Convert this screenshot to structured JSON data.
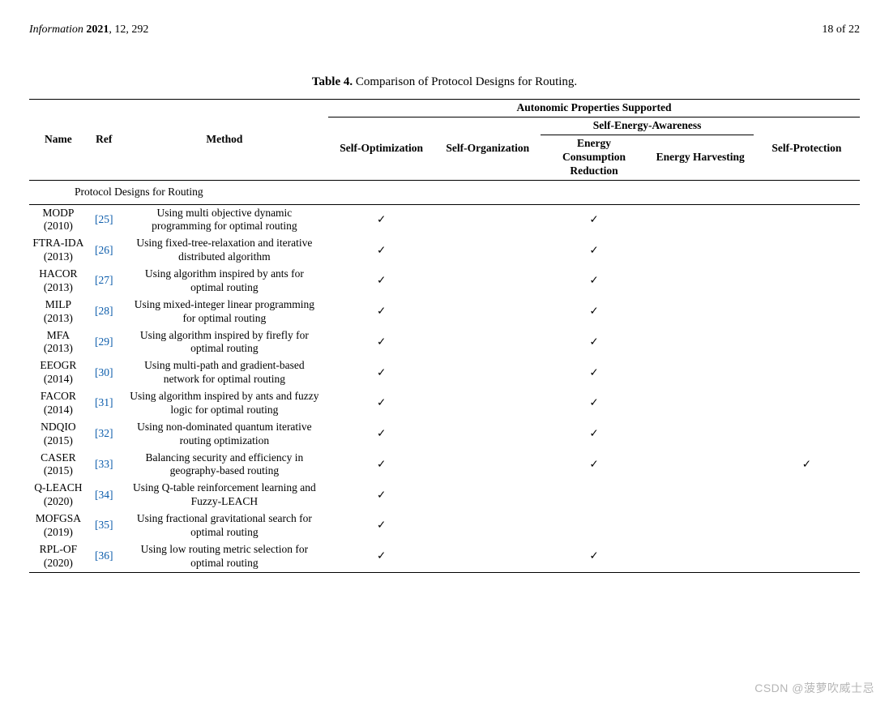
{
  "header": {
    "journal_italic": "Information",
    "year_bold": "2021",
    "vol_issue": ", 12, 292",
    "page": "18 of 22"
  },
  "caption": {
    "label": "Table 4.",
    "text": "Comparison of Protocol Designs for Routing."
  },
  "columns": {
    "name": "Name",
    "ref": "Ref",
    "method": "Method",
    "autonomic": "Autonomic Properties Supported",
    "self_opt": "Self-Optimization",
    "self_org": "Self-Organization",
    "self_energy": "Self-Energy-Awareness",
    "energy_cons": "Energy Consumption Reduction",
    "energy_harv": "Energy Harvesting",
    "self_prot": "Self-Protection"
  },
  "section_title": "Protocol Designs for Routing",
  "check": "✓",
  "rows": [
    {
      "name": "MODP (2010)",
      "ref": "[25]",
      "method": "Using multi objective dynamic programming for optimal routing",
      "p": [
        true,
        false,
        true,
        false,
        false
      ]
    },
    {
      "name": "FTRA-IDA (2013)",
      "ref": "[26]",
      "method": "Using fixed-tree-relaxation and iterative distributed algorithm",
      "p": [
        true,
        false,
        true,
        false,
        false
      ]
    },
    {
      "name": "HACOR (2013)",
      "ref": "[27]",
      "method": "Using algorithm inspired by ants for optimal routing",
      "p": [
        true,
        false,
        true,
        false,
        false
      ]
    },
    {
      "name": "MILP (2013)",
      "ref": "[28]",
      "method": "Using mixed-integer linear programming for optimal routing",
      "p": [
        true,
        false,
        true,
        false,
        false
      ]
    },
    {
      "name": "MFA (2013)",
      "ref": "[29]",
      "method": "Using algorithm inspired by firefly for optimal routing",
      "p": [
        true,
        false,
        true,
        false,
        false
      ]
    },
    {
      "name": "EEOGR (2014)",
      "ref": "[30]",
      "method": "Using multi-path and gradient-based network for optimal routing",
      "p": [
        true,
        false,
        true,
        false,
        false
      ]
    },
    {
      "name": "FACOR (2014)",
      "ref": "[31]",
      "method": "Using algorithm inspired by ants and fuzzy logic for optimal routing",
      "p": [
        true,
        false,
        true,
        false,
        false
      ]
    },
    {
      "name": "NDQIO (2015)",
      "ref": "[32]",
      "method": "Using non-dominated quantum iterative routing optimization",
      "p": [
        true,
        false,
        true,
        false,
        false
      ]
    },
    {
      "name": "CASER (2015)",
      "ref": "[33]",
      "method": "Balancing security and efficiency in geography-based routing",
      "p": [
        true,
        false,
        true,
        false,
        true
      ]
    },
    {
      "name": "Q-LEACH (2020)",
      "ref": "[34]",
      "method": "Using Q-table reinforcement learning and Fuzzy-LEACH",
      "p": [
        true,
        false,
        false,
        false,
        false
      ]
    },
    {
      "name": "MOFGSA (2019)",
      "ref": "[35]",
      "method": "Using fractional gravitational search for optimal routing",
      "p": [
        true,
        false,
        false,
        false,
        false
      ]
    },
    {
      "name": "RPL-OF (2020)",
      "ref": "[36]",
      "method": "Using low routing metric selection for optimal routing",
      "p": [
        true,
        false,
        true,
        false,
        false
      ]
    }
  ],
  "watermark": "CSDN @菠萝吹威士忌"
}
